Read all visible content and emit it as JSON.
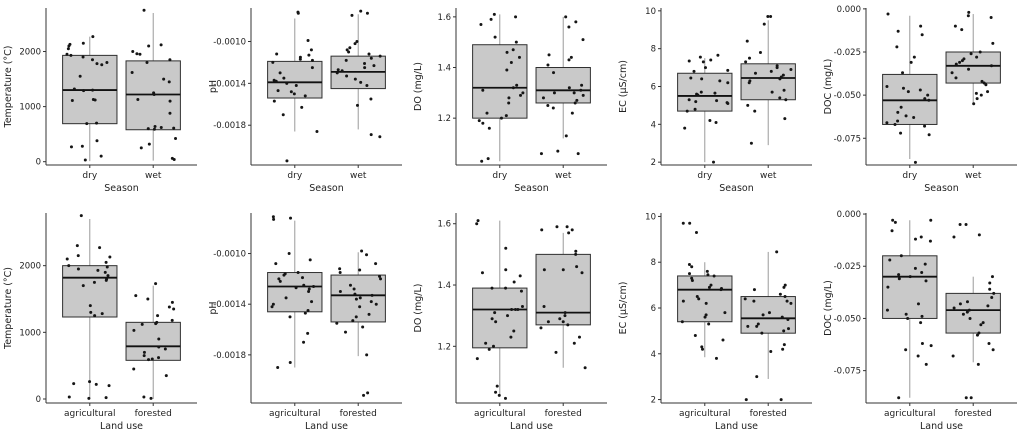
{
  "figure": {
    "description": "Grid of 10 box plots comparing water-quality variables by Season (top row) and Land use (bottom row)",
    "colors": {
      "background": "#ffffff",
      "box_fill": "#c9c9c9",
      "box_stroke": "#2f2f2f",
      "median_color": "#111111",
      "whisker_color": "#9a9a9a",
      "axis_color": "#333333",
      "point_color": "#151515",
      "text_color": "#222222"
    }
  },
  "chart_data": [
    {
      "type": "boxplot",
      "row": 0,
      "ylabel": "Temperature (°C)",
      "xlabel": "Season",
      "categories": [
        "dry",
        "wet"
      ],
      "ylim": [
        -60,
        2790
      ],
      "yticks": [
        0,
        1000,
        2000
      ],
      "ytick_labels": [
        "0",
        "1000",
        "2000"
      ],
      "grid": false,
      "legend": "none",
      "boxes": [
        {
          "category": "dry",
          "whisker_low": 10,
          "q1": 690,
          "median": 1300,
          "q3": 1930,
          "whisker_high": 2270
        },
        {
          "category": "wet",
          "whisker_low": 20,
          "q1": 580,
          "median": 1220,
          "q3": 1830,
          "whisker_high": 2700
        }
      ],
      "points": [
        [
          2270,
          2150,
          2130,
          2100,
          2050,
          1950,
          1930,
          1900,
          1850,
          1800,
          1780,
          1760,
          1550,
          1320,
          1300,
          1290,
          1130,
          1120,
          1110,
          700,
          690,
          380,
          280,
          270,
          100,
          30
        ],
        [
          2750,
          2120,
          2100,
          2000,
          1960,
          1950,
          1850,
          1800,
          1620,
          1500,
          1450,
          1250,
          1220,
          1130,
          1100,
          880,
          640,
          620,
          610,
          600,
          590,
          420,
          320,
          250,
          60,
          40
        ]
      ]
    },
    {
      "type": "boxplot",
      "row": 0,
      "ylabel": "pH",
      "xlabel": "Season",
      "categories": [
        "dry",
        "wet"
      ],
      "ylim": [
        -0.00218,
        -0.00068
      ],
      "yticks": [
        -0.001,
        -0.0014,
        -0.0018
      ],
      "ytick_labels": [
        "-0.0010",
        "-0.0014",
        "-0.0018"
      ],
      "grid": false,
      "legend": "none",
      "boxes": [
        {
          "category": "dry",
          "whisker_low": -0.00186,
          "q1": -0.00154,
          "median": -0.00139,
          "q3": -0.00119,
          "whisker_high": -0.00078
        },
        {
          "category": "wet",
          "whisker_low": -0.00184,
          "q1": -0.00145,
          "median": -0.00129,
          "q3": -0.00114,
          "whisker_high": -0.00074
        }
      ],
      "points": [
        [
          -0.00072,
          -0.00073,
          -0.00099,
          -0.00108,
          -0.00112,
          -0.00113,
          -0.00115,
          -0.00117,
          -0.00118,
          -0.0012,
          -0.00125,
          -0.0013,
          -0.00135,
          -0.00137,
          -0.00138,
          -0.0014,
          -0.00142,
          -0.00147,
          -0.00148,
          -0.0015,
          -0.00152,
          -0.00157,
          -0.00163,
          -0.0017,
          -0.00186,
          -0.00214
        ],
        [
          -0.00071,
          -0.00073,
          -0.00075,
          -0.001,
          -0.00102,
          -0.00106,
          -0.00108,
          -0.0011,
          -0.00112,
          -0.00114,
          -0.00116,
          -0.00118,
          -0.00121,
          -0.00123,
          -0.00125,
          -0.00127,
          -0.00128,
          -0.0013,
          -0.00133,
          -0.00136,
          -0.00139,
          -0.00142,
          -0.00155,
          -0.00161,
          -0.00189,
          -0.00191
        ]
      ]
    },
    {
      "type": "boxplot",
      "row": 0,
      "ylabel": "DO (mg/L)",
      "xlabel": "Season",
      "categories": [
        "dry",
        "wet"
      ],
      "ylim": [
        1.015,
        1.635
      ],
      "yticks": [
        1.2,
        1.4,
        1.6
      ],
      "ytick_labels": [
        "1.2",
        "1.4",
        "1.6"
      ],
      "grid": false,
      "legend": "none",
      "boxes": [
        {
          "category": "dry",
          "whisker_low": 1.03,
          "q1": 1.2,
          "median": 1.32,
          "q3": 1.49,
          "whisker_high": 1.61
        },
        {
          "category": "wet",
          "whisker_low": 1.12,
          "q1": 1.26,
          "median": 1.31,
          "q3": 1.4,
          "whisker_high": 1.6
        }
      ],
      "points": [
        [
          1.61,
          1.6,
          1.59,
          1.57,
          1.52,
          1.5,
          1.47,
          1.46,
          1.44,
          1.42,
          1.39,
          1.33,
          1.32,
          1.31,
          1.3,
          1.29,
          1.28,
          1.26,
          1.22,
          1.21,
          1.2,
          1.19,
          1.18,
          1.16,
          1.04,
          1.03
        ],
        [
          1.6,
          1.58,
          1.56,
          1.51,
          1.45,
          1.44,
          1.43,
          1.41,
          1.38,
          1.33,
          1.32,
          1.31,
          1.3,
          1.3,
          1.29,
          1.28,
          1.27,
          1.26,
          1.25,
          1.24,
          1.22,
          1.13,
          1.07,
          1.06,
          1.06
        ]
      ]
    },
    {
      "type": "boxplot",
      "row": 0,
      "ylabel": "EC (μS/cm)",
      "xlabel": "Season",
      "categories": [
        "dry",
        "wet"
      ],
      "ylim": [
        1.85,
        10.15
      ],
      "yticks": [
        2,
        4,
        6,
        8,
        10
      ],
      "ytick_labels": [
        "2",
        "4",
        "6",
        "8",
        "10"
      ],
      "grid": false,
      "legend": "none",
      "boxes": [
        {
          "category": "dry",
          "whisker_low": 2.0,
          "q1": 4.7,
          "median": 5.5,
          "q3": 6.7,
          "whisker_high": 7.5
        },
        {
          "category": "wet",
          "whisker_low": 2.9,
          "q1": 5.3,
          "median": 6.45,
          "q3": 7.2,
          "whisker_high": 9.5
        }
      ],
      "points": [
        [
          7.65,
          7.55,
          7.4,
          7.35,
          7.3,
          7.0,
          6.85,
          6.8,
          6.45,
          6.4,
          6.3,
          6.2,
          5.7,
          5.65,
          5.6,
          5.55,
          5.3,
          5.25,
          5.2,
          5.15,
          5.1,
          4.8,
          4.7,
          4.2,
          4.1,
          3.8,
          2.0
        ],
        [
          9.7,
          9.7,
          9.3,
          8.4,
          7.8,
          7.5,
          7.3,
          7.1,
          7.0,
          6.9,
          6.8,
          6.7,
          6.6,
          6.5,
          6.4,
          6.3,
          6.2,
          5.8,
          5.7,
          5.4,
          5.3,
          5.0,
          4.7,
          4.3,
          3.0
        ]
      ]
    },
    {
      "type": "boxplot",
      "row": 0,
      "ylabel": "DOC (mg/L)",
      "xlabel": "Season",
      "categories": [
        "dry",
        "wet"
      ],
      "ylim": [
        -0.0905,
        0.0005
      ],
      "yticks": [
        0,
        -0.025,
        -0.05,
        -0.075
      ],
      "ytick_labels": [
        "0.000",
        "-0.025",
        "-0.050",
        "-0.075"
      ],
      "grid": false,
      "legend": "none",
      "boxes": [
        {
          "category": "dry",
          "whisker_low": -0.087,
          "q1": -0.067,
          "median": -0.053,
          "q3": -0.038,
          "whisker_high": -0.004
        },
        {
          "category": "wet",
          "whisker_low": -0.055,
          "q1": -0.043,
          "median": -0.033,
          "q3": -0.025,
          "whisker_high": -0.003
        }
      ],
      "points": [
        [
          -0.003,
          -0.01,
          -0.013,
          -0.015,
          -0.022,
          -0.028,
          -0.031,
          -0.037,
          -0.045,
          -0.046,
          -0.047,
          -0.048,
          -0.05,
          -0.052,
          -0.053,
          -0.057,
          -0.06,
          -0.062,
          -0.063,
          -0.065,
          -0.066,
          -0.067,
          -0.068,
          -0.072,
          -0.073,
          -0.089
        ],
        [
          -0.002,
          -0.004,
          -0.005,
          -0.01,
          -0.012,
          -0.02,
          -0.025,
          -0.026,
          -0.028,
          -0.029,
          -0.03,
          -0.031,
          -0.032,
          -0.033,
          -0.035,
          -0.037,
          -0.04,
          -0.042,
          -0.043,
          -0.044,
          -0.048,
          -0.049,
          -0.05,
          -0.052,
          -0.055
        ]
      ]
    },
    {
      "type": "boxplot",
      "row": 1,
      "ylabel": "Temperature (°C)",
      "xlabel": "Land use",
      "categories": [
        "agricultural",
        "forested"
      ],
      "ylim": [
        -60,
        2790
      ],
      "yticks": [
        0,
        1000,
        2000
      ],
      "ytick_labels": [
        "0",
        "1000",
        "2000"
      ],
      "grid": false,
      "legend": "none",
      "boxes": [
        {
          "category": "agricultural",
          "whisker_low": 0,
          "q1": 1230,
          "median": 1820,
          "q3": 2000,
          "whisker_high": 2700
        },
        {
          "category": "forested",
          "whisker_low": 0,
          "q1": 580,
          "median": 790,
          "q3": 1150,
          "whisker_high": 1700
        }
      ],
      "points": [
        [
          2750,
          2300,
          2270,
          2150,
          2130,
          2100,
          2050,
          2000,
          1980,
          1950,
          1930,
          1900,
          1850,
          1800,
          1780,
          1750,
          1700,
          1400,
          1300,
          1280,
          1250,
          260,
          230,
          220,
          200,
          30,
          20,
          10
        ],
        [
          1730,
          1550,
          1500,
          1450,
          1380,
          1350,
          1250,
          1180,
          1150,
          1130,
          1120,
          1030,
          900,
          780,
          750,
          700,
          650,
          620,
          600,
          590,
          450,
          350,
          30,
          10
        ]
      ]
    },
    {
      "type": "boxplot",
      "row": 1,
      "ylabel": "pH",
      "xlabel": "Land use",
      "categories": [
        "agricultural",
        "forested"
      ],
      "ylim": [
        -0.00218,
        -0.00068
      ],
      "yticks": [
        -0.001,
        -0.0014,
        -0.0018
      ],
      "ytick_labels": [
        "-0.0010",
        "-0.0014",
        "-0.0018"
      ],
      "grid": false,
      "legend": "none",
      "boxes": [
        {
          "category": "agricultural",
          "whisker_low": -0.0019,
          "q1": -0.00146,
          "median": -0.00126,
          "q3": -0.00115,
          "whisker_high": -0.00074
        },
        {
          "category": "forested",
          "whisker_low": -0.00181,
          "q1": -0.00154,
          "median": -0.00133,
          "q3": -0.00117,
          "whisker_high": -0.00099
        }
      ],
      "points": [
        [
          -0.00071,
          -0.00072,
          -0.00073,
          -0.001,
          -0.00105,
          -0.00108,
          -0.00115,
          -0.00116,
          -0.00117,
          -0.00119,
          -0.0012,
          -0.00122,
          -0.00125,
          -0.00126,
          -0.00127,
          -0.00128,
          -0.0013,
          -0.00135,
          -0.00138,
          -0.0014,
          -0.00142,
          -0.00145,
          -0.00147,
          -0.0015,
          -0.00163,
          -0.0017,
          -0.00186,
          -0.0019
        ],
        [
          -0.00098,
          -0.00101,
          -0.00108,
          -0.00112,
          -0.00113,
          -0.00115,
          -0.00118,
          -0.0012,
          -0.00125,
          -0.00128,
          -0.0013,
          -0.00132,
          -0.00133,
          -0.00135,
          -0.00136,
          -0.00138,
          -0.0014,
          -0.00142,
          -0.00148,
          -0.0015,
          -0.00153,
          -0.00155,
          -0.00158,
          -0.00162,
          -0.0018,
          -0.0021,
          -0.00212
        ]
      ]
    },
    {
      "type": "boxplot",
      "row": 1,
      "ylabel": "DO (mg/L)",
      "xlabel": "Land use",
      "categories": [
        "agricultural",
        "forested"
      ],
      "ylim": [
        1.015,
        1.635
      ],
      "yticks": [
        1.2,
        1.4,
        1.6
      ],
      "ytick_labels": [
        "1.2",
        "1.4",
        "1.6"
      ],
      "grid": false,
      "legend": "none",
      "boxes": [
        {
          "category": "agricultural",
          "whisker_low": 1.04,
          "q1": 1.195,
          "median": 1.32,
          "q3": 1.39,
          "whisker_high": 1.61
        },
        {
          "category": "forested",
          "whisker_low": 1.13,
          "q1": 1.27,
          "median": 1.31,
          "q3": 1.5,
          "whisker_high": 1.57
        }
      ],
      "points": [
        [
          1.61,
          1.6,
          1.52,
          1.45,
          1.44,
          1.43,
          1.41,
          1.39,
          1.39,
          1.38,
          1.33,
          1.32,
          1.32,
          1.32,
          1.31,
          1.3,
          1.29,
          1.28,
          1.25,
          1.23,
          1.21,
          1.2,
          1.19,
          1.16,
          1.07,
          1.05,
          1.04,
          1.03
        ],
        [
          1.59,
          1.59,
          1.58,
          1.58,
          1.57,
          1.51,
          1.5,
          1.46,
          1.45,
          1.45,
          1.44,
          1.33,
          1.31,
          1.3,
          1.29,
          1.28,
          1.28,
          1.27,
          1.26,
          1.23,
          1.21,
          1.18,
          1.13
        ]
      ]
    },
    {
      "type": "boxplot",
      "row": 1,
      "ylabel": "EC (μS/cm)",
      "xlabel": "Land use",
      "categories": [
        "agricultural",
        "forested"
      ],
      "ylim": [
        1.85,
        10.15
      ],
      "yticks": [
        2,
        4,
        6,
        8,
        10
      ],
      "ytick_labels": [
        "2",
        "4",
        "6",
        "8",
        "10"
      ],
      "grid": false,
      "legend": "none",
      "boxes": [
        {
          "category": "agricultural",
          "whisker_low": 3.85,
          "q1": 5.4,
          "median": 6.8,
          "q3": 7.4,
          "whisker_high": 8.0
        },
        {
          "category": "forested",
          "whisker_low": 2.9,
          "q1": 4.9,
          "median": 5.55,
          "q3": 6.5,
          "whisker_high": 8.45
        }
      ],
      "points": [
        [
          9.7,
          9.7,
          9.3,
          7.9,
          7.8,
          7.6,
          7.5,
          7.45,
          7.4,
          7.3,
          7.2,
          7.0,
          6.9,
          6.85,
          6.8,
          6.5,
          6.4,
          6.3,
          6.2,
          5.8,
          5.7,
          5.6,
          5.4,
          5.3,
          4.8,
          4.6,
          4.3,
          4.2,
          3.8
        ],
        [
          8.45,
          7.0,
          6.9,
          6.8,
          6.6,
          6.5,
          6.4,
          6.3,
          6.3,
          6.2,
          5.8,
          5.7,
          5.6,
          5.5,
          5.3,
          5.2,
          5.2,
          5.1,
          5.0,
          4.9,
          4.4,
          4.2,
          4.1,
          3.0,
          2.0,
          2.0
        ]
      ]
    },
    {
      "type": "boxplot",
      "row": 1,
      "ylabel": "DOC (mg/L)",
      "xlabel": "Land use",
      "categories": [
        "agricultural",
        "forested"
      ],
      "ylim": [
        -0.0905,
        0.0005
      ],
      "yticks": [
        0,
        -0.025,
        -0.05,
        -0.075
      ],
      "ytick_labels": [
        "0.000",
        "-0.025",
        "-0.050",
        "-0.075"
      ],
      "grid": false,
      "legend": "none",
      "boxes": [
        {
          "category": "agricultural",
          "whisker_low": -0.088,
          "q1": -0.05,
          "median": -0.03,
          "q3": -0.02,
          "whisker_high": -0.003
        },
        {
          "category": "forested",
          "whisker_low": -0.071,
          "q1": -0.057,
          "median": -0.046,
          "q3": -0.038,
          "whisker_high": -0.03
        }
      ],
      "points": [
        [
          -0.003,
          -0.003,
          -0.004,
          -0.008,
          -0.011,
          -0.012,
          -0.013,
          -0.02,
          -0.022,
          -0.024,
          -0.026,
          -0.028,
          -0.029,
          -0.03,
          -0.031,
          -0.032,
          -0.035,
          -0.043,
          -0.046,
          -0.048,
          -0.049,
          -0.05,
          -0.052,
          -0.062,
          -0.063,
          -0.065,
          -0.068,
          -0.072,
          -0.088
        ],
        [
          -0.005,
          -0.005,
          -0.01,
          -0.011,
          -0.03,
          -0.033,
          -0.036,
          -0.038,
          -0.04,
          -0.042,
          -0.043,
          -0.044,
          -0.045,
          -0.046,
          -0.047,
          -0.048,
          -0.05,
          -0.052,
          -0.053,
          -0.057,
          -0.058,
          -0.062,
          -0.065,
          -0.068,
          -0.072,
          -0.088,
          -0.088
        ]
      ]
    }
  ]
}
